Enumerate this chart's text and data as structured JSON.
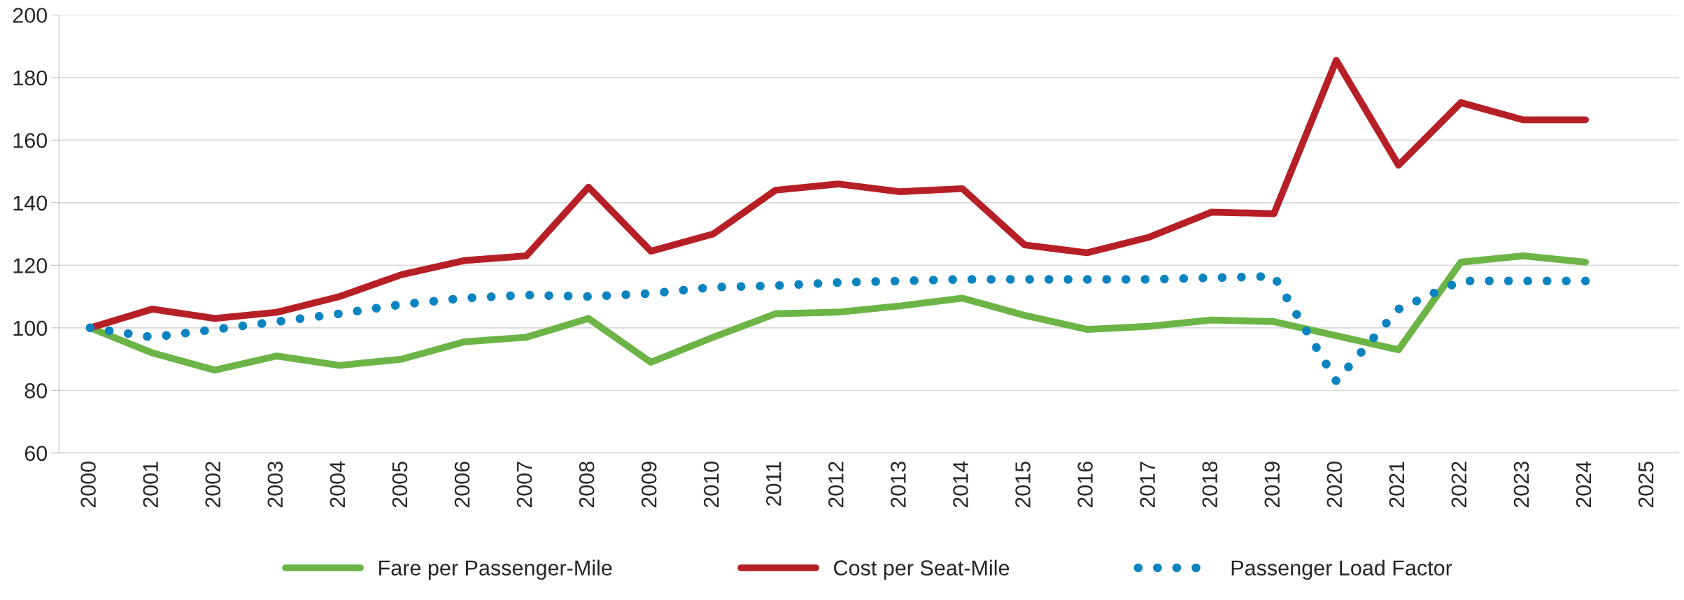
{
  "chart_data": {
    "type": "line",
    "categories": [
      "2000",
      "2001",
      "2002",
      "2003",
      "2004",
      "2005",
      "2006",
      "2007",
      "2008",
      "2009",
      "2010",
      "2011",
      "2012",
      "2013",
      "2014",
      "2015",
      "2016",
      "2017",
      "2018",
      "2019",
      "2020",
      "2021",
      "2022",
      "2023",
      "2024",
      "2025"
    ],
    "series": [
      {
        "name": "Fare per Passenger-Mile",
        "color": "#6bb445",
        "line_style": "solid",
        "values": [
          100,
          92,
          86.5,
          91,
          88,
          90,
          95.5,
          97,
          103,
          89,
          97,
          104.5,
          105,
          107,
          109.5,
          104,
          99.5,
          100.5,
          102.5,
          102,
          97.5,
          93,
          121,
          123,
          121,
          null
        ]
      },
      {
        "name": "Cost per Seat-Mile",
        "color": "#b71f26",
        "line_style": "solid",
        "values": [
          100,
          106,
          103,
          105,
          110,
          117,
          121.5,
          123,
          145,
          124.5,
          130,
          144,
          146,
          143.5,
          144.5,
          126.5,
          124,
          129,
          137,
          136.5,
          185.5,
          152,
          172,
          166.5,
          166.5,
          null
        ]
      },
      {
        "name": "Passenger Load Factor",
        "color": "#0a84c1",
        "line_style": "dotted",
        "values": [
          100,
          97,
          99.5,
          102,
          104.5,
          107.5,
          109.5,
          110.5,
          110,
          111,
          113,
          113.5,
          114.5,
          115,
          115.5,
          115.5,
          115.5,
          115.5,
          116,
          116.5,
          83,
          106,
          115,
          115,
          115,
          null
        ]
      }
    ],
    "ylim": [
      60,
      200
    ],
    "yticks": [
      60,
      80,
      100,
      120,
      140,
      160,
      180,
      200
    ],
    "grid": "y",
    "legend": "bottom",
    "marker": "none"
  }
}
